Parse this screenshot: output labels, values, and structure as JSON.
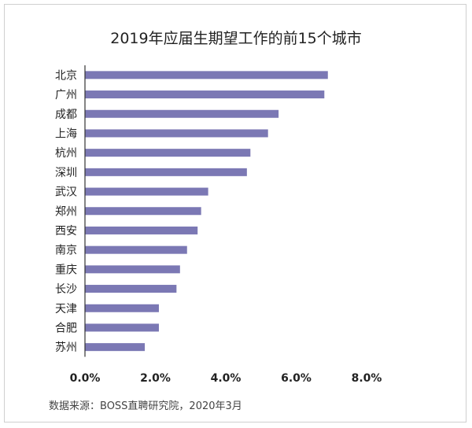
{
  "chart_data": {
    "type": "bar",
    "orientation": "horizontal",
    "title": "2019年应届生期望工作的前15个城市",
    "categories": [
      "北京",
      "广州",
      "成都",
      "上海",
      "杭州",
      "深圳",
      "武汉",
      "郑州",
      "西安",
      "南京",
      "重庆",
      "长沙",
      "天津",
      "合肥",
      "苏州"
    ],
    "values": [
      6.9,
      6.8,
      5.5,
      5.2,
      4.7,
      4.6,
      3.5,
      3.3,
      3.2,
      2.9,
      2.7,
      2.6,
      2.1,
      2.1,
      1.7
    ],
    "value_unit": "%",
    "xlim": [
      0,
      8
    ],
    "xticks": [
      0,
      2,
      4,
      6,
      8
    ],
    "xtick_labels": [
      "0.0%",
      "2.0%",
      "4.0%",
      "6.0%",
      "8.0%"
    ],
    "xlabel": "",
    "ylabel": "",
    "grid": false,
    "legend": "none",
    "bar_color": "#7b78b4"
  },
  "source_note": "数据来源：BOSS直聘研究院，2020年3月"
}
